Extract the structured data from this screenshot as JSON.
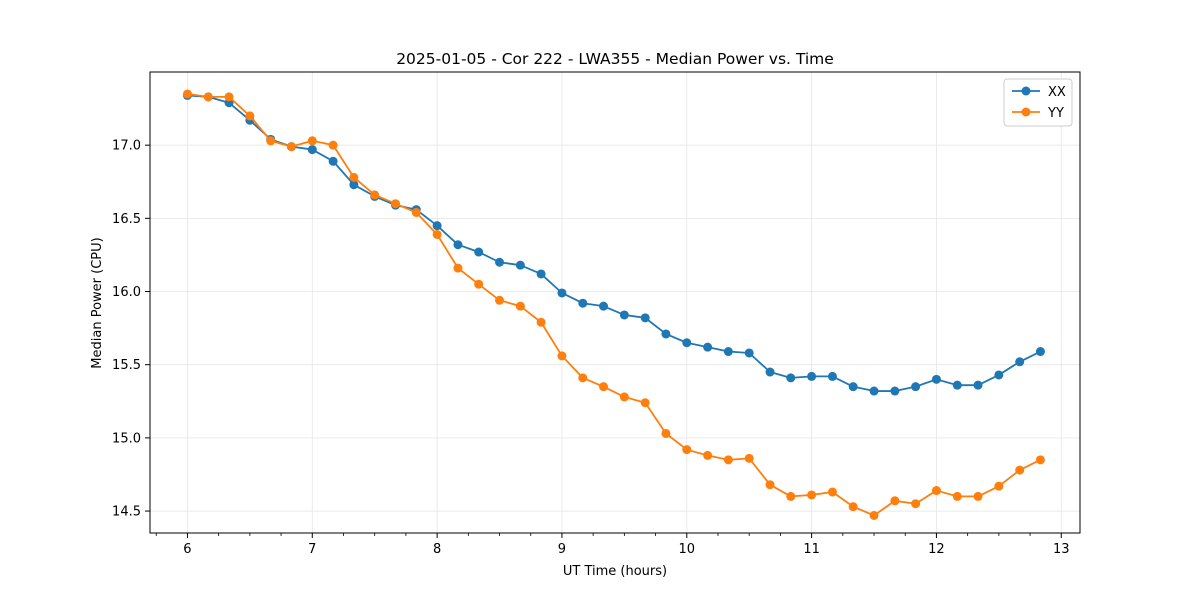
{
  "chart_data": {
    "type": "line",
    "title": "2025-01-05 - Cor 222 - LWA355 - Median Power vs. Time",
    "xlabel": "UT Time (hours)",
    "ylabel": "Median Power (CPU)",
    "xlim": [
      5.7,
      13.15
    ],
    "ylim": [
      14.35,
      17.5
    ],
    "xticks": [
      6,
      7,
      8,
      9,
      10,
      11,
      12,
      13
    ],
    "xtick_labels": [
      "6",
      "7",
      "8",
      "9",
      "10",
      "11",
      "12",
      "13"
    ],
    "yticks": [
      14.5,
      15.0,
      15.5,
      16.0,
      16.5,
      17.0
    ],
    "ytick_labels": [
      "14.5",
      "15.0",
      "15.5",
      "16.0",
      "16.5",
      "17.0"
    ],
    "grid": true,
    "legend_position": "top-right",
    "x": [
      6.0,
      6.167,
      6.333,
      6.5,
      6.667,
      6.833,
      7.0,
      7.167,
      7.333,
      7.5,
      7.667,
      7.833,
      8.0,
      8.167,
      8.333,
      8.5,
      8.667,
      8.833,
      9.0,
      9.167,
      9.333,
      9.5,
      9.667,
      9.833,
      10.0,
      10.167,
      10.333,
      10.5,
      10.667,
      10.833,
      11.0,
      11.167,
      11.333,
      11.5,
      11.667,
      11.833,
      12.0,
      12.167,
      12.333,
      12.5,
      12.667,
      12.833
    ],
    "series": [
      {
        "name": "XX",
        "color": "#1f77b4",
        "values": [
          17.34,
          17.33,
          17.29,
          17.17,
          17.04,
          16.99,
          16.97,
          16.89,
          16.73,
          16.65,
          16.59,
          16.56,
          16.45,
          16.32,
          16.27,
          16.2,
          16.18,
          16.12,
          15.99,
          15.92,
          15.9,
          15.84,
          15.82,
          15.71,
          15.65,
          15.62,
          15.59,
          15.58,
          15.45,
          15.41,
          15.42,
          15.42,
          15.35,
          15.32,
          15.32,
          15.35,
          15.4,
          15.36,
          15.36,
          15.43,
          15.52,
          15.59
        ]
      },
      {
        "name": "YY",
        "color": "#ff7f0e",
        "values": [
          17.35,
          17.33,
          17.33,
          17.2,
          17.03,
          16.99,
          17.03,
          17.0,
          16.78,
          16.66,
          16.6,
          16.54,
          16.39,
          16.16,
          16.05,
          15.94,
          15.9,
          15.79,
          15.56,
          15.41,
          15.35,
          15.28,
          15.24,
          15.03,
          14.92,
          14.88,
          14.85,
          14.86,
          14.68,
          14.6,
          14.61,
          14.63,
          14.53,
          14.47,
          14.57,
          14.55,
          14.64,
          14.6,
          14.6,
          14.67,
          14.78,
          14.85
        ]
      }
    ]
  }
}
